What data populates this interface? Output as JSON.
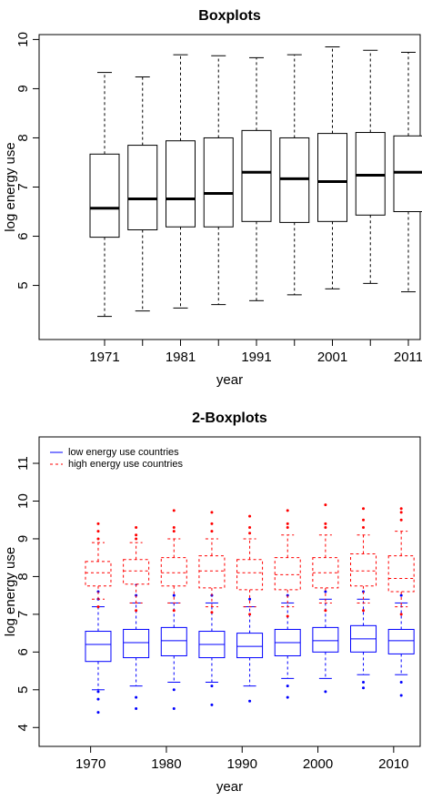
{
  "chart_data": [
    {
      "type": "boxplot",
      "title": "Boxplots",
      "xlabel": "year",
      "ylabel": "log energy use",
      "categories": [
        "1971",
        null,
        "1981",
        null,
        "1991",
        null,
        "2001",
        null,
        "2011"
      ],
      "ylim": [
        3.9,
        10.1
      ],
      "yticks": [
        5,
        6,
        7,
        8,
        9,
        10
      ],
      "whisker_linestyle": "dashed",
      "median_bold": true,
      "series": [
        {
          "color": "#000000",
          "linestyle": "solid",
          "boxes": [
            {
              "low": 4.37,
              "q1": 5.98,
              "median": 6.57,
              "q3": 7.67,
              "high": 9.33
            },
            {
              "low": 4.48,
              "q1": 6.13,
              "median": 6.76,
              "q3": 7.85,
              "high": 9.24
            },
            {
              "low": 4.54,
              "q1": 6.19,
              "median": 6.76,
              "q3": 7.94,
              "high": 9.69
            },
            {
              "low": 4.61,
              "q1": 6.19,
              "median": 6.87,
              "q3": 8.0,
              "high": 9.67
            },
            {
              "low": 4.69,
              "q1": 6.3,
              "median": 7.3,
              "q3": 8.15,
              "high": 9.63
            },
            {
              "low": 4.81,
              "q1": 6.28,
              "median": 7.17,
              "q3": 8.0,
              "high": 9.69
            },
            {
              "low": 4.93,
              "q1": 6.3,
              "median": 7.11,
              "q3": 8.09,
              "high": 9.85
            },
            {
              "low": 5.04,
              "q1": 6.43,
              "median": 7.24,
              "q3": 8.11,
              "high": 9.78
            },
            {
              "low": 4.87,
              "q1": 6.5,
              "median": 7.3,
              "q3": 8.04,
              "high": 9.74
            }
          ]
        }
      ]
    },
    {
      "type": "boxplot",
      "title": "2-Boxplots",
      "xlabel": "year",
      "ylabel": "log energy use",
      "x": [
        1971,
        1976,
        1981,
        1986,
        1991,
        1996,
        2001,
        2006,
        2011
      ],
      "xlim": [
        1963.2,
        2013.5
      ],
      "xticks": [
        1970,
        1980,
        1990,
        2000,
        2010
      ],
      "ylim": [
        3.5,
        11.7
      ],
      "yticks": [
        4,
        5,
        6,
        7,
        8,
        9,
        10,
        11
      ],
      "whisker_linestyle": "dashed",
      "median_bold": false,
      "legend": "top-left",
      "series": [
        {
          "name": "low energy use countries",
          "color": "#0000ff",
          "linestyle": "solid",
          "boxes": [
            {
              "low": 5.0,
              "q1": 5.75,
              "median": 6.2,
              "q3": 6.55,
              "high": 7.2,
              "outliers": [
                4.4,
                4.75,
                4.95,
                7.4,
                7.6,
                7.9
              ]
            },
            {
              "low": 5.1,
              "q1": 5.85,
              "median": 6.25,
              "q3": 6.6,
              "high": 7.3,
              "outliers": [
                4.5,
                4.8,
                7.5,
                7.8,
                8.1
              ]
            },
            {
              "low": 5.2,
              "q1": 5.9,
              "median": 6.3,
              "q3": 6.65,
              "high": 7.3,
              "outliers": [
                4.5,
                5.0,
                7.5,
                7.9,
                8.2
              ]
            },
            {
              "low": 5.2,
              "q1": 5.85,
              "median": 6.2,
              "q3": 6.55,
              "high": 7.3,
              "outliers": [
                4.6,
                5.1,
                7.5,
                7.8
              ]
            },
            {
              "low": 5.1,
              "q1": 5.85,
              "median": 6.15,
              "q3": 6.5,
              "high": 7.2,
              "outliers": [
                4.7,
                7.4,
                7.7,
                8.0
              ]
            },
            {
              "low": 5.3,
              "q1": 5.9,
              "median": 6.25,
              "q3": 6.6,
              "high": 7.3,
              "outliers": [
                4.8,
                5.1,
                7.5,
                7.8
              ]
            },
            {
              "low": 5.3,
              "q1": 6.0,
              "median": 6.3,
              "q3": 6.65,
              "high": 7.4,
              "outliers": [
                4.95,
                7.6,
                7.9
              ]
            },
            {
              "low": 5.4,
              "q1": 6.0,
              "median": 6.35,
              "q3": 6.7,
              "high": 7.4,
              "outliers": [
                5.05,
                5.2,
                7.6,
                8.0
              ]
            },
            {
              "low": 5.4,
              "q1": 5.95,
              "median": 6.3,
              "q3": 6.6,
              "high": 7.3,
              "outliers": [
                4.85,
                5.2,
                7.5,
                7.7
              ]
            }
          ]
        },
        {
          "name": "high energy use countries",
          "color": "#ff0000",
          "linestyle": "dashed",
          "boxes": [
            {
              "low": 7.4,
              "q1": 7.75,
              "median": 8.1,
              "q3": 8.4,
              "high": 8.9,
              "outliers": [
                9.4,
                9.2,
                9.0,
                7.2
              ]
            },
            {
              "low": 7.3,
              "q1": 7.8,
              "median": 8.15,
              "q3": 8.45,
              "high": 8.9,
              "outliers": [
                9.3,
                9.1,
                9.0,
                7.1
              ]
            },
            {
              "low": 7.3,
              "q1": 7.75,
              "median": 8.1,
              "q3": 8.5,
              "high": 9.0,
              "outliers": [
                9.75,
                9.3,
                9.2,
                7.1
              ]
            },
            {
              "low": 7.2,
              "q1": 7.7,
              "median": 8.15,
              "q3": 8.55,
              "high": 9.0,
              "outliers": [
                9.7,
                9.4,
                9.2,
                7.05
              ]
            },
            {
              "low": 7.2,
              "q1": 7.65,
              "median": 8.1,
              "q3": 8.45,
              "high": 9.0,
              "outliers": [
                9.6,
                9.3,
                9.15,
                7.0
              ]
            },
            {
              "low": 7.2,
              "q1": 7.65,
              "median": 8.05,
              "q3": 8.5,
              "high": 9.1,
              "outliers": [
                9.75,
                9.4,
                9.3,
                6.95
              ]
            },
            {
              "low": 7.3,
              "q1": 7.7,
              "median": 8.1,
              "q3": 8.5,
              "high": 9.1,
              "outliers": [
                9.9,
                9.4,
                9.3,
                7.1
              ]
            },
            {
              "low": 7.3,
              "q1": 7.75,
              "median": 8.15,
              "q3": 8.6,
              "high": 9.1,
              "outliers": [
                9.8,
                9.5,
                9.3,
                7.1
              ]
            },
            {
              "low": 7.2,
              "q1": 7.6,
              "median": 7.95,
              "q3": 8.55,
              "high": 9.2,
              "outliers": [
                9.8,
                9.7,
                9.5,
                7.0
              ]
            }
          ]
        }
      ]
    }
  ]
}
